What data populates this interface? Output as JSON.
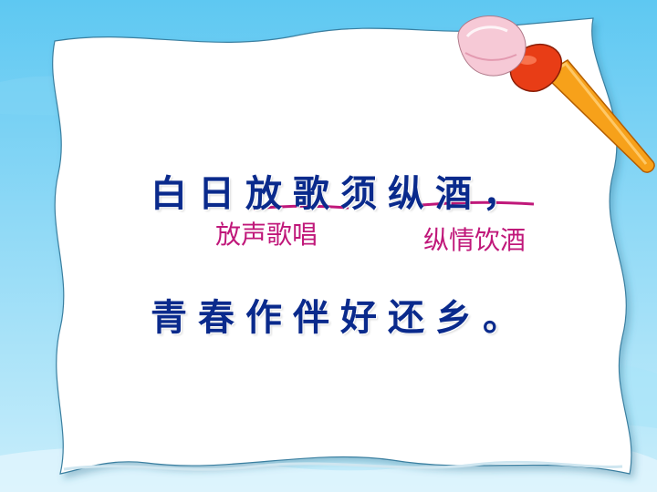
{
  "poem": {
    "line1": "白日放歌须纵酒，",
    "line2": "青春作伴好还乡。"
  },
  "annotations": {
    "fang_ge": "放声歌唱",
    "zong_jiu": "纵情饮酒"
  },
  "colors": {
    "poem_text": "#0a2a8c",
    "annotation_text": "#c0187a",
    "underline": "#c0187a",
    "background": "#5ec8f2"
  },
  "icons": [
    "paintbrush-icon"
  ]
}
